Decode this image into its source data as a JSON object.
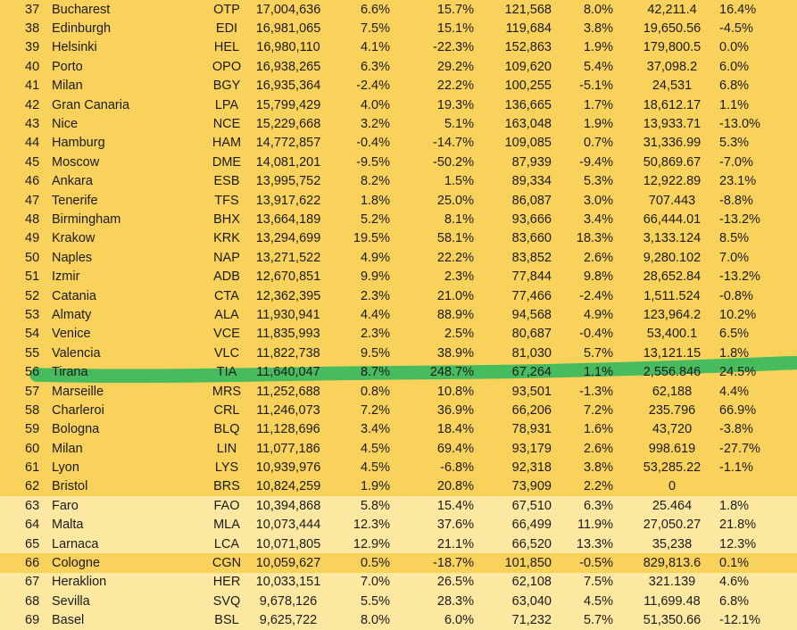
{
  "colors": {
    "row_dark": "#F9D25C",
    "row_light": "#FCE8A1",
    "highlighter_green": "#46BC5F",
    "text": "#1b1b1b"
  },
  "chart_data": {
    "type": "table",
    "title": "",
    "columns": [
      "rank",
      "city",
      "airport_code",
      "passengers",
      "pct_change_1",
      "pct_change_2",
      "movements",
      "pct_change_3",
      "freight",
      "pct_change_4"
    ],
    "highlighted_rank": "56",
    "rows": [
      {
        "shade": "dark",
        "hl": false,
        "cells": [
          "37",
          "Bucharest",
          "OTP",
          "17,004,636",
          "6.6%",
          "15.7%",
          "121,568",
          "8.0%",
          "42,211.4",
          "16.4%"
        ]
      },
      {
        "shade": "dark",
        "hl": false,
        "cells": [
          "38",
          "Edinburgh",
          "EDI",
          "16,981,065",
          "7.5%",
          "15.1%",
          "119,684",
          "3.8%",
          "19,650.56",
          "-4.5%"
        ]
      },
      {
        "shade": "dark",
        "hl": false,
        "cells": [
          "39",
          "Helsinki",
          "HEL",
          "16,980,110",
          "4.1%",
          "-22.3%",
          "152,863",
          "1.9%",
          "179,800.5",
          "0.0%"
        ]
      },
      {
        "shade": "dark",
        "hl": false,
        "cells": [
          "40",
          "Porto",
          "OPO",
          "16,938,265",
          "6.3%",
          "29.2%",
          "109,620",
          "5.4%",
          "37,098.2",
          "6.0%"
        ]
      },
      {
        "shade": "dark",
        "hl": false,
        "cells": [
          "41",
          "Milan",
          "BGY",
          "16,935,364",
          "-2.4%",
          "22.2%",
          "100,255",
          "-5.1%",
          "24,531",
          "6.8%"
        ]
      },
      {
        "shade": "dark",
        "hl": false,
        "cells": [
          "42",
          "Gran Canaria",
          "LPA",
          "15,799,429",
          "4.0%",
          "19.3%",
          "136,665",
          "1.7%",
          "18,612.17",
          "1.1%"
        ]
      },
      {
        "shade": "dark",
        "hl": false,
        "cells": [
          "43",
          "Nice",
          "NCE",
          "15,229,668",
          "3.2%",
          "5.1%",
          "163,048",
          "1.9%",
          "13,933.71",
          "-13.0%"
        ]
      },
      {
        "shade": "dark",
        "hl": false,
        "cells": [
          "44",
          "Hamburg",
          "HAM",
          "14,772,857",
          "-0.4%",
          "-14.7%",
          "109,085",
          "0.7%",
          "31,336.99",
          "5.3%"
        ]
      },
      {
        "shade": "dark",
        "hl": false,
        "cells": [
          "45",
          "Moscow",
          "DME",
          "14,081,201",
          "-9.5%",
          "-50.2%",
          "87,939",
          "-9.4%",
          "50,869.67",
          "-7.0%"
        ]
      },
      {
        "shade": "dark",
        "hl": false,
        "cells": [
          "46",
          "Ankara",
          "ESB",
          "13,995,752",
          "8.2%",
          "1.5%",
          "89,334",
          "5.3%",
          "12,922.89",
          "23.1%"
        ]
      },
      {
        "shade": "dark",
        "hl": false,
        "cells": [
          "47",
          "Tenerife",
          "TFS",
          "13,917,622",
          "1.8%",
          "25.0%",
          "86,087",
          "3.0%",
          "707.443",
          "-8.8%"
        ]
      },
      {
        "shade": "dark",
        "hl": false,
        "cells": [
          "48",
          "Birmingham",
          "BHX",
          "13,664,189",
          "5.2%",
          "8.1%",
          "93,666",
          "3.4%",
          "66,444.01",
          "-13.2%"
        ]
      },
      {
        "shade": "dark",
        "hl": false,
        "cells": [
          "49",
          "Krakow",
          "KRK",
          "13,294,699",
          "19.5%",
          "58.1%",
          "83,660",
          "18.3%",
          "3,133.124",
          "8.5%"
        ]
      },
      {
        "shade": "dark",
        "hl": false,
        "cells": [
          "50",
          "Naples",
          "NAP",
          "13,271,522",
          "4.9%",
          "22.2%",
          "83,852",
          "2.6%",
          "9,280.102",
          "7.0%"
        ]
      },
      {
        "shade": "dark",
        "hl": false,
        "cells": [
          "51",
          "Izmir",
          "ADB",
          "12,670,851",
          "9.9%",
          "2.3%",
          "77,844",
          "9.8%",
          "28,652.84",
          "-13.2%"
        ]
      },
      {
        "shade": "dark",
        "hl": false,
        "cells": [
          "52",
          "Catania",
          "CTA",
          "12,362,395",
          "2.3%",
          "21.0%",
          "77,466",
          "-2.4%",
          "1,511.524",
          "-0.8%"
        ]
      },
      {
        "shade": "dark",
        "hl": false,
        "cells": [
          "53",
          "Almaty",
          "ALA",
          "11,930,941",
          "4.4%",
          "88.9%",
          "94,568",
          "4.9%",
          "123,964.2",
          "10.2%"
        ]
      },
      {
        "shade": "dark",
        "hl": false,
        "cells": [
          "54",
          "Venice",
          "VCE",
          "11,835,993",
          "2.3%",
          "2.5%",
          "80,687",
          "-0.4%",
          "53,400.1",
          "6.5%"
        ]
      },
      {
        "shade": "dark",
        "hl": false,
        "cells": [
          "55",
          "Valencia",
          "VLC",
          "11,822,738",
          "9.5%",
          "38.9%",
          "81,030",
          "5.7%",
          "13,121.15",
          "1.8%"
        ]
      },
      {
        "shade": "dark",
        "hl": true,
        "cells": [
          "56",
          "Tirana",
          "TIA",
          "11,640,047",
          "8.7%",
          "248.7%",
          "67,264",
          "1.1%",
          "2,556.846",
          "24.5%"
        ]
      },
      {
        "shade": "dark",
        "hl": false,
        "cells": [
          "57",
          "Marseille",
          "MRS",
          "11,252,688",
          "0.8%",
          "10.8%",
          "93,501",
          "-1.3%",
          "62,188",
          "4.4%"
        ]
      },
      {
        "shade": "dark",
        "hl": false,
        "cells": [
          "58",
          "Charleroi",
          "CRL",
          "11,246,073",
          "7.2%",
          "36.9%",
          "66,206",
          "7.2%",
          "235.796",
          "66.9%"
        ]
      },
      {
        "shade": "dark",
        "hl": false,
        "cells": [
          "59",
          "Bologna",
          "BLQ",
          "11,128,696",
          "3.4%",
          "18.4%",
          "78,931",
          "1.6%",
          "43,720",
          "-3.8%"
        ]
      },
      {
        "shade": "dark",
        "hl": false,
        "cells": [
          "60",
          "Milan",
          "LIN",
          "11,077,186",
          "4.5%",
          "69.4%",
          "93,179",
          "2.6%",
          "998.619",
          "-27.7%"
        ]
      },
      {
        "shade": "dark",
        "hl": false,
        "cells": [
          "61",
          "Lyon",
          "LYS",
          "10,939,976",
          "4.5%",
          "-6.8%",
          "92,318",
          "3.8%",
          "53,285.22",
          "-1.1%"
        ]
      },
      {
        "shade": "dark",
        "hl": false,
        "cells": [
          "62",
          "Bristol",
          "BRS",
          "10,824,259",
          "1.9%",
          "20.8%",
          "73,909",
          "2.2%",
          "0",
          ""
        ]
      },
      {
        "shade": "light",
        "hl": false,
        "cells": [
          "63",
          "Faro",
          "FAO",
          "10,394,868",
          "5.8%",
          "15.4%",
          "67,510",
          "6.3%",
          "25.464",
          "1.8%"
        ]
      },
      {
        "shade": "light",
        "hl": false,
        "cells": [
          "64",
          "Malta",
          "MLA",
          "10,073,444",
          "12.3%",
          "37.6%",
          "66,499",
          "11.9%",
          "27,050.27",
          "21.8%"
        ]
      },
      {
        "shade": "light",
        "hl": false,
        "cells": [
          "65",
          "Larnaca",
          "LCA",
          "10,071,805",
          "12.9%",
          "21.1%",
          "66,520",
          "13.3%",
          "35,238",
          "12.3%"
        ]
      },
      {
        "shade": "dark",
        "hl": false,
        "cells": [
          "66",
          "Cologne",
          "CGN",
          "10,059,627",
          "0.5%",
          "-18.7%",
          "101,850",
          "-0.5%",
          "829,813.6",
          "0.1%"
        ]
      },
      {
        "shade": "light",
        "hl": false,
        "cells": [
          "67",
          "Heraklion",
          "HER",
          "10,033,151",
          "7.0%",
          "26.5%",
          "62,108",
          "7.5%",
          "321.139",
          "4.6%"
        ]
      },
      {
        "shade": "light",
        "hl": false,
        "cells": [
          "68",
          "Sevilla",
          "SVQ",
          "9,678,126",
          "5.5%",
          "28.3%",
          "63,040",
          "4.5%",
          "11,699.48",
          "6.8%"
        ]
      },
      {
        "shade": "light",
        "hl": false,
        "cells": [
          "69",
          "Basel",
          "BSL",
          "9,625,722",
          "8.0%",
          "6.0%",
          "71,232",
          "5.7%",
          "51,350.66",
          "-12.1%"
        ]
      }
    ]
  }
}
